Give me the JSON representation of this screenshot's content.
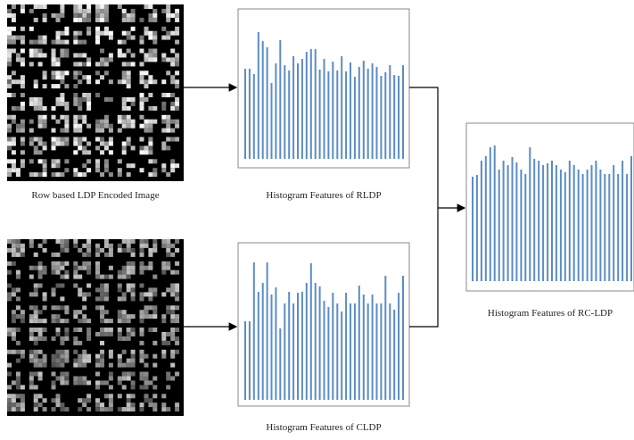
{
  "inputs": [
    {
      "label": "Row based LDP Encoded Image"
    },
    {
      "label": ""
    }
  ],
  "histograms": [
    {
      "label": "Histogram Features of RLDP",
      "values": [
        101,
        101,
        95,
        142,
        132,
        125,
        85,
        107,
        133,
        105,
        99,
        115,
        107,
        112,
        120,
        123,
        123,
        100,
        112,
        98,
        109,
        99,
        115,
        98,
        108,
        92,
        103,
        110,
        101,
        107,
        103,
        93,
        97,
        105,
        94,
        93,
        105
      ]
    },
    {
      "label": "Histogram Features of CLDP",
      "values": [
        88,
        88,
        154,
        121,
        131,
        154,
        118,
        126,
        80,
        108,
        121,
        108,
        120,
        121,
        131,
        153,
        131,
        127,
        111,
        104,
        120,
        108,
        99,
        120,
        108,
        108,
        128,
        118,
        108,
        118,
        108,
        108,
        139,
        108,
        101,
        120,
        139
      ]
    },
    {
      "label": "Histogram Features of RC-LDP",
      "values": [
        117,
        119,
        135,
        140,
        150,
        152,
        125,
        135,
        130,
        139,
        133,
        125,
        120,
        150,
        137,
        135,
        130,
        132,
        135,
        130,
        125,
        122,
        135,
        130,
        125,
        120,
        125,
        130,
        135,
        125,
        120,
        120,
        130,
        120,
        135,
        120,
        140
      ]
    }
  ]
}
